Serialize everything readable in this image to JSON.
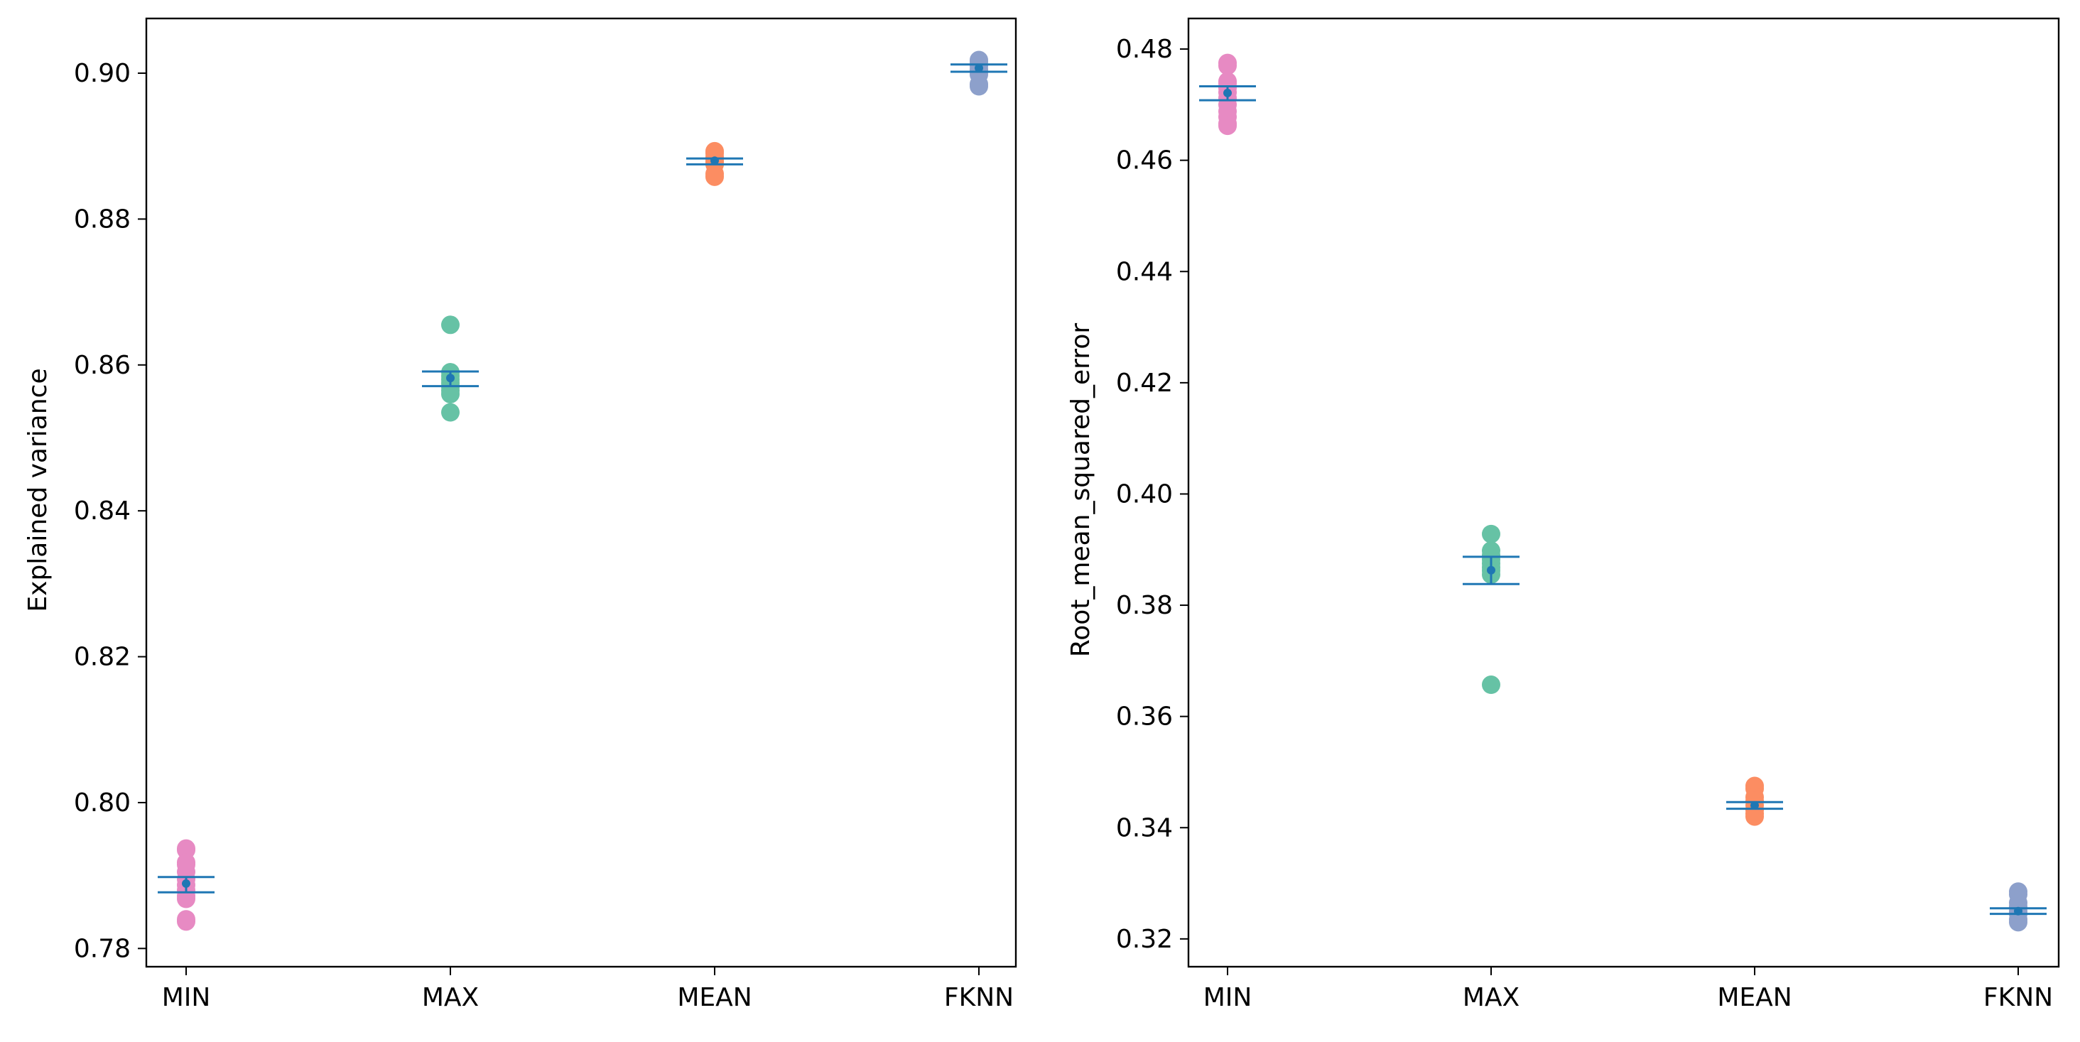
{
  "chart_data": [
    {
      "type": "scatter",
      "title": "",
      "xlabel": "",
      "ylabel": "Explained variance",
      "categories": [
        "MIN",
        "MAX",
        "MEAN",
        "FKNN"
      ],
      "ylim": [
        0.7775,
        0.9075
      ],
      "yticks": [
        0.78,
        0.8,
        0.82,
        0.84,
        0.86,
        0.88,
        0.9
      ],
      "ytick_labels": [
        "0.78",
        "0.80",
        "0.82",
        "0.84",
        "0.86",
        "0.88",
        "0.90"
      ],
      "colors": [
        "#e78ac3",
        "#66c2a5",
        "#fc8d62",
        "#8da0cb"
      ],
      "summary_color": "#1f77b4",
      "points": [
        [
          0.7935,
          0.7937,
          0.7918,
          0.7915,
          0.7905,
          0.7895,
          0.7887,
          0.788,
          0.7872,
          0.7868,
          0.784,
          0.7837
        ],
        [
          0.8655,
          0.859,
          0.8585,
          0.858,
          0.8575,
          0.857,
          0.8565,
          0.856,
          0.8535
        ],
        [
          0.8893,
          0.889,
          0.8885,
          0.888,
          0.8878,
          0.8875,
          0.8862,
          0.8858
        ],
        [
          0.9018,
          0.9015,
          0.901,
          0.9005,
          0.9002,
          0.8998,
          0.8985,
          0.8982
        ]
      ],
      "means": [
        0.7889,
        0.8582,
        0.888,
        0.9007
      ],
      "bands": [
        [
          0.7877,
          0.7898
        ],
        [
          0.8571,
          0.8591
        ],
        [
          0.8875,
          0.8883
        ],
        [
          0.9002,
          0.9012
        ]
      ]
    },
    {
      "type": "scatter",
      "title": "",
      "xlabel": "",
      "ylabel": "Root_mean_squared_error",
      "categories": [
        "MIN",
        "MAX",
        "MEAN",
        "FKNN"
      ],
      "ylim": [
        0.315,
        0.4855
      ],
      "yticks": [
        0.32,
        0.34,
        0.36,
        0.38,
        0.4,
        0.42,
        0.44,
        0.46,
        0.48
      ],
      "ytick_labels": [
        "0.32",
        "0.34",
        "0.36",
        "0.38",
        "0.40",
        "0.42",
        "0.44",
        "0.46",
        "0.48"
      ],
      "colors": [
        "#e78ac3",
        "#66c2a5",
        "#fc8d62",
        "#8da0cb"
      ],
      "summary_color": "#1f77b4",
      "points": [
        [
          0.4775,
          0.477,
          0.4742,
          0.4738,
          0.473,
          0.4722,
          0.4712,
          0.47,
          0.4688,
          0.4678,
          0.4666,
          0.4662
        ],
        [
          0.3928,
          0.3898,
          0.389,
          0.3882,
          0.3875,
          0.3868,
          0.3862,
          0.3855,
          0.3657
        ],
        [
          0.3475,
          0.347,
          0.3455,
          0.3448,
          0.344,
          0.3432,
          0.3425,
          0.342
        ],
        [
          0.3285,
          0.328,
          0.3265,
          0.3258,
          0.325,
          0.3245,
          0.3235,
          0.323
        ]
      ],
      "means": [
        0.4721,
        0.3863,
        0.344,
        0.325
      ],
      "bands": [
        [
          0.4708,
          0.4733
        ],
        [
          0.3838,
          0.3887
        ],
        [
          0.3434,
          0.3446
        ],
        [
          0.3245,
          0.3255
        ]
      ]
    }
  ]
}
